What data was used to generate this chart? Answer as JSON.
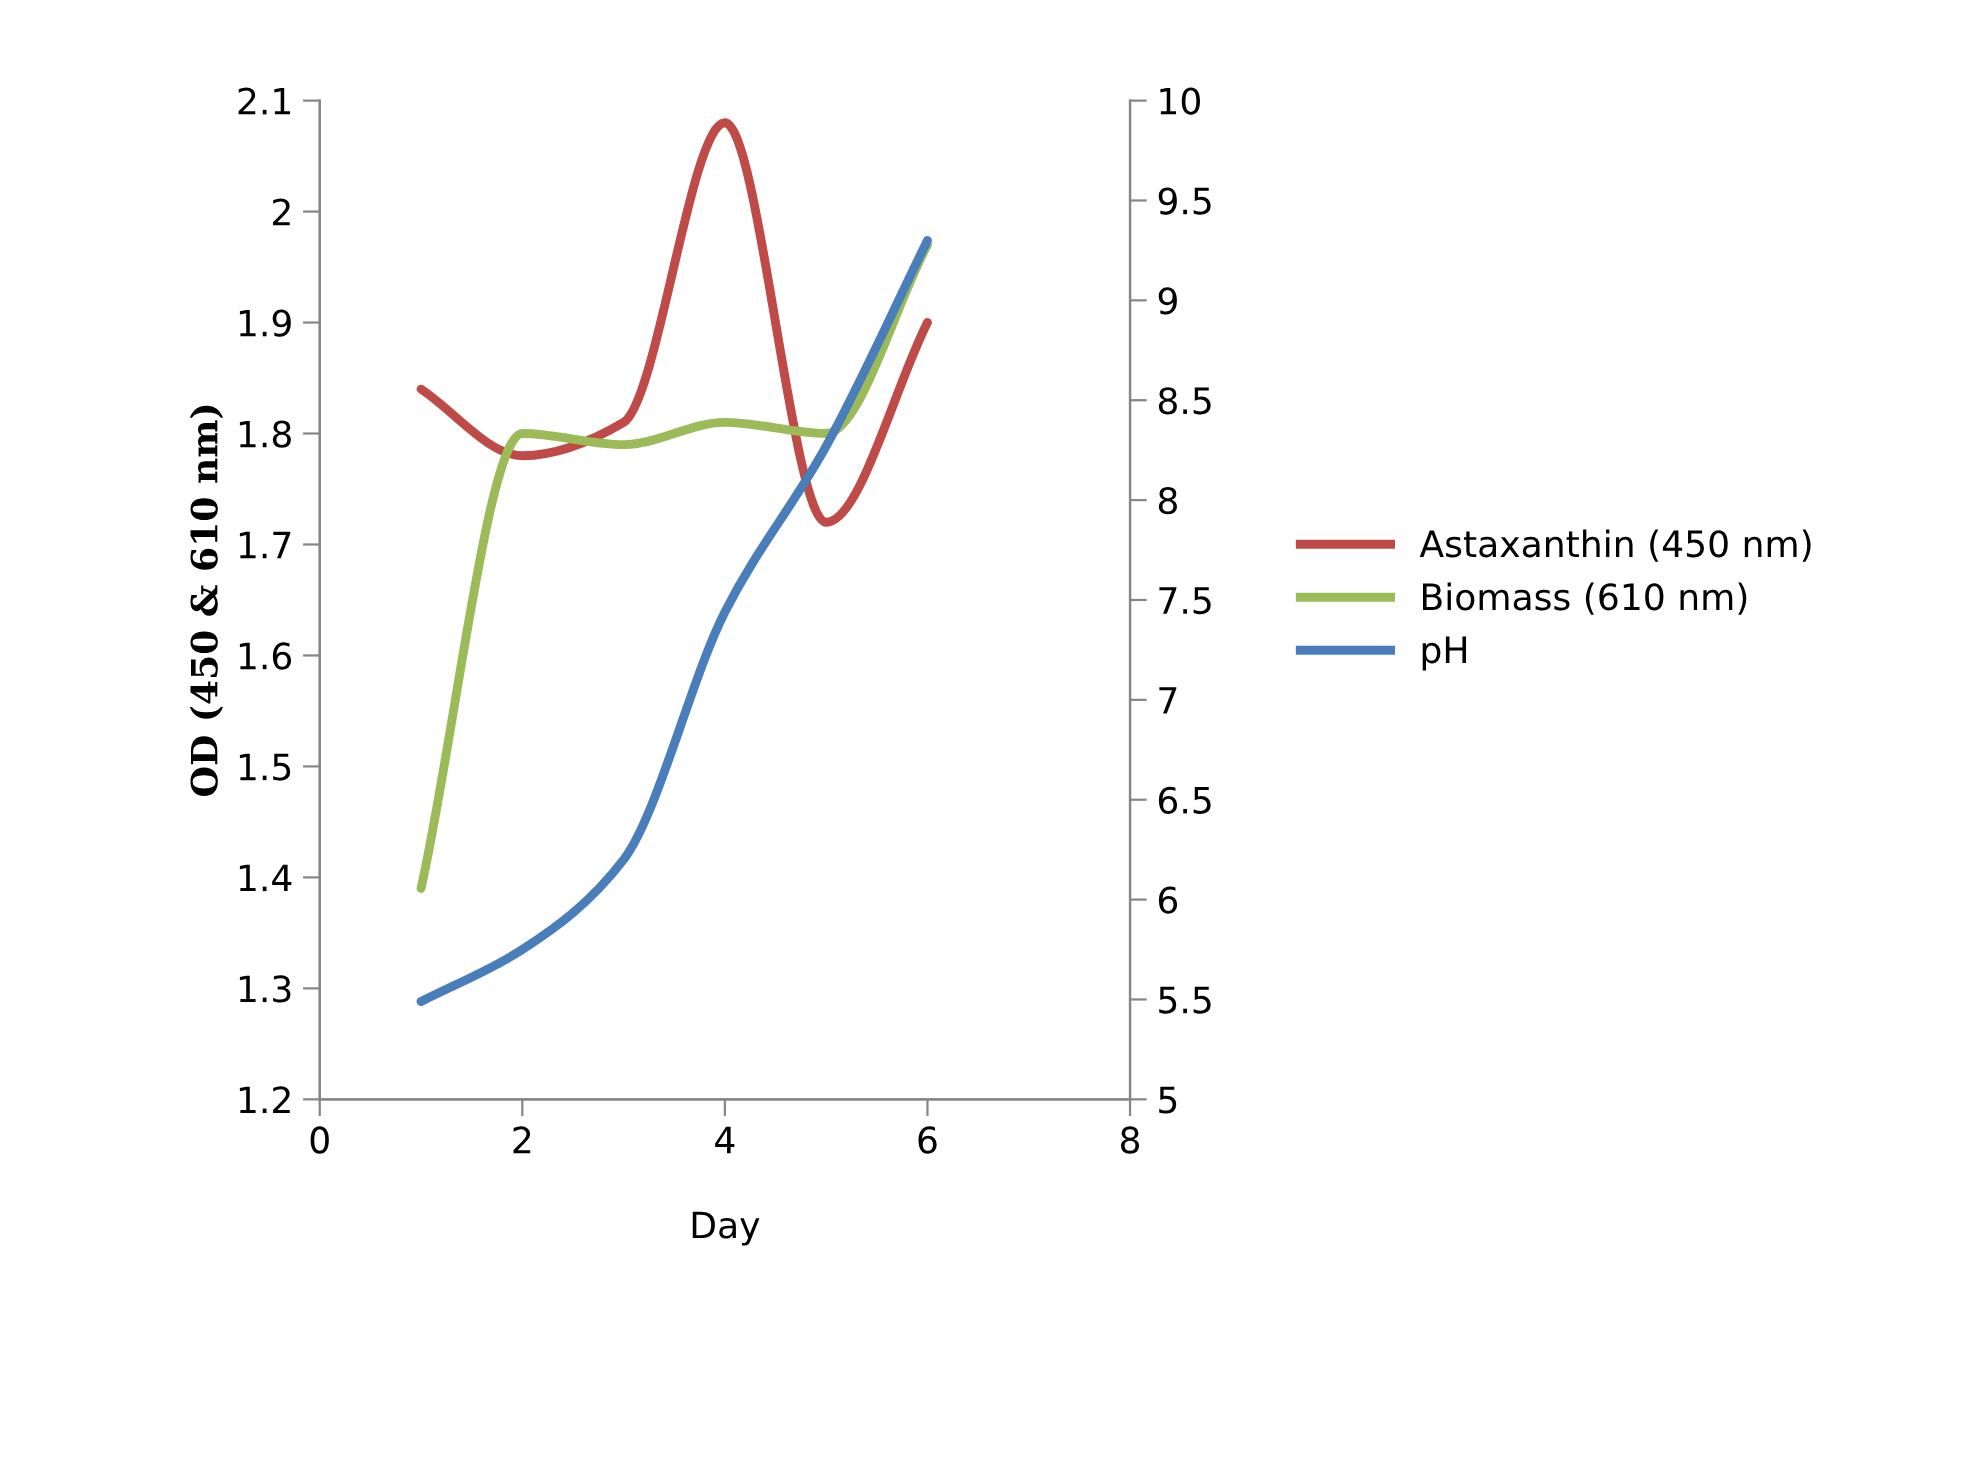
{
  "chart_data": {
    "type": "line",
    "xlabel": "Day",
    "ylabel": "OD (450 & 610 nm)",
    "x": [
      1,
      2,
      3,
      4,
      5,
      6
    ],
    "xlim": [
      0,
      8
    ],
    "xticks": [
      0,
      2,
      4,
      6,
      8
    ],
    "ylim": [
      1.2,
      2.1
    ],
    "yticks": [
      1.2,
      1.3,
      1.4,
      1.5,
      1.6,
      1.7,
      1.8,
      1.9,
      2,
      2.1
    ],
    "y2lim": [
      5,
      10
    ],
    "y2ticks": [
      5,
      5.5,
      6,
      6.5,
      7,
      7.5,
      8,
      8.5,
      9,
      9.5,
      10
    ],
    "legend": "right",
    "grid": false,
    "marker": "none",
    "line_style": "solid",
    "series": [
      {
        "name": "Astaxanthin (450 nm)",
        "color": "#be4b48",
        "values": [
          1.84,
          1.78,
          1.81,
          2.08,
          1.72,
          1.9
        ]
      },
      {
        "name": "Biomass (610 nm)",
        "color": "#9bbb59",
        "values": [
          1.39,
          1.8,
          1.79,
          1.81,
          1.8,
          1.97
        ]
      },
      {
        "name": "pH",
        "color": "#4a7ebb",
        "axis": "y2",
        "values": [
          5.49,
          5.75,
          6.2,
          7.44,
          8.27,
          9.3
        ]
      }
    ]
  }
}
